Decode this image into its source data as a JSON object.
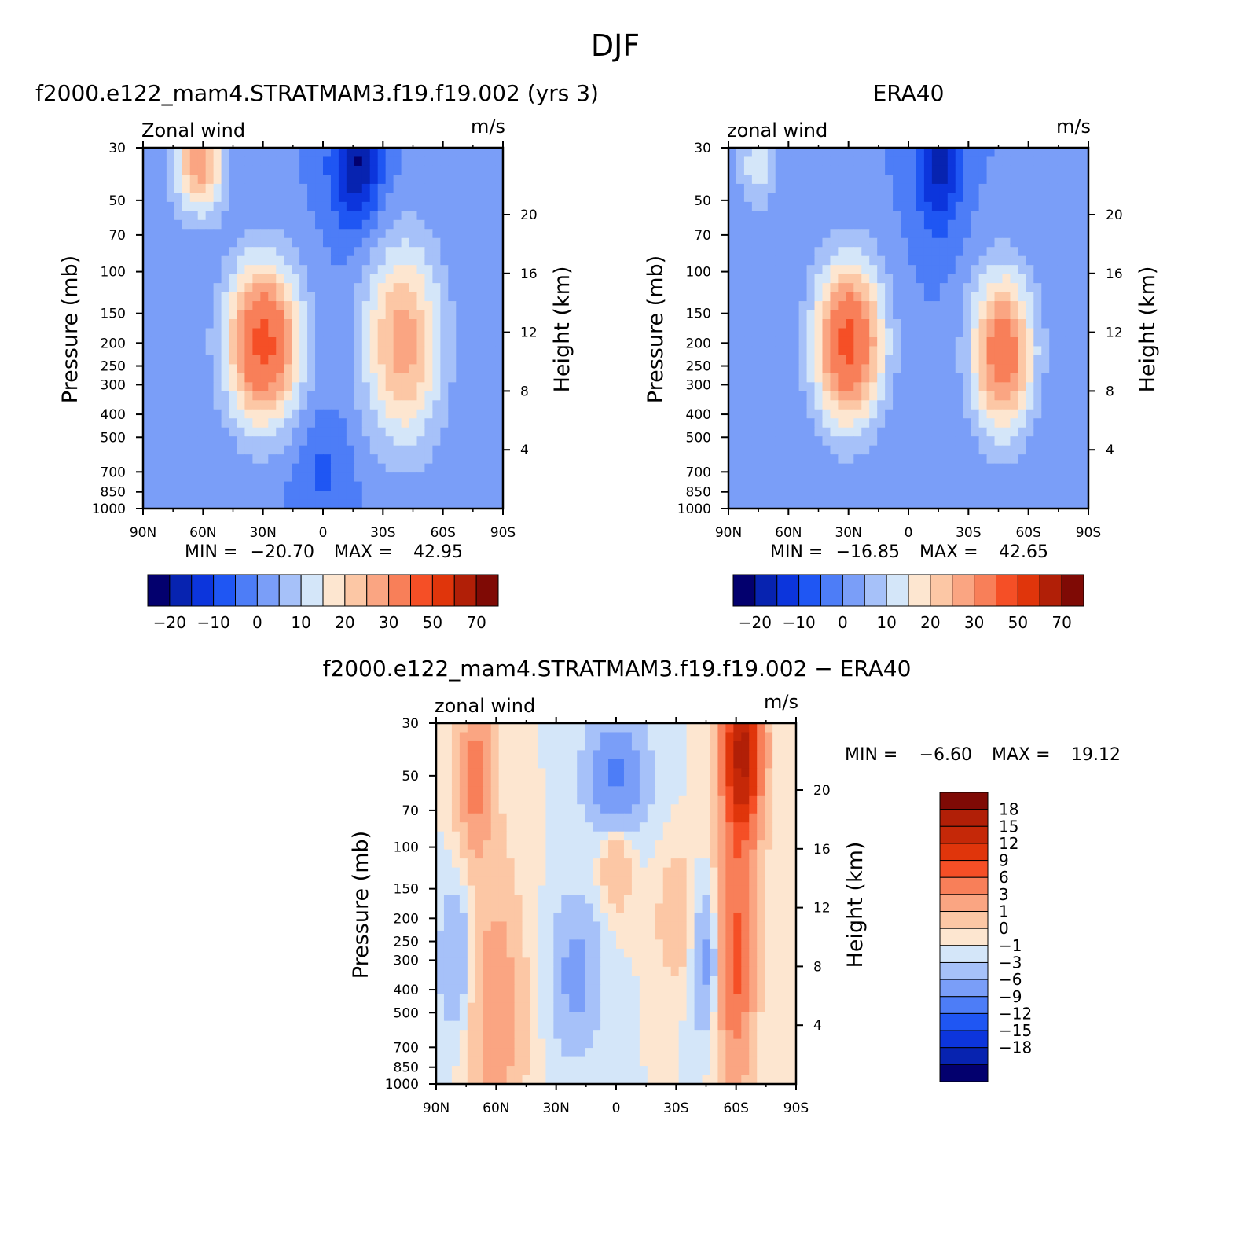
{
  "figure": {
    "title": "DJF"
  },
  "chart_data": [
    {
      "type": "heatmap",
      "id": "model",
      "title": "f2000.e122_mam4.STRATMAM3.f19.f19.002 (yrs 3)",
      "left_string": "Zonal wind",
      "right_string": "m/s",
      "ylabel": "Pressure (mb)",
      "ylabel_right": "Height (km)",
      "x_ticks": [
        "90N",
        "60N",
        "30N",
        "0",
        "30S",
        "60S",
        "90S"
      ],
      "y_ticks": [
        "30",
        "50",
        "70",
        "100",
        "150",
        "200",
        "250",
        "300",
        "400",
        "500",
        "700",
        "850",
        "1000"
      ],
      "height_ticks": [
        "4",
        "8",
        "12",
        "16",
        "20"
      ],
      "xlim": [
        90,
        -90
      ],
      "ylim": [
        1000,
        30
      ],
      "min_label": "MIN =",
      "min_value": "−20.70",
      "max_label": "MAX =",
      "max_value": "42.95",
      "levels": [
        -25,
        -20,
        -15,
        -10,
        -5,
        0,
        5,
        10,
        15,
        20,
        25,
        30,
        40,
        50,
        60,
        70
      ],
      "colorbar_labels": [
        "−20",
        "−10",
        "0",
        "10",
        "20",
        "30",
        "50",
        "70"
      ],
      "features": [
        {
          "lat": 30,
          "p": 200,
          "value": 42.95,
          "spread_lat": 13,
          "spread_logp": 0.55
        },
        {
          "lat": 62,
          "p": 35,
          "value": 28,
          "spread_lat": 9,
          "spread_logp": 0.35
        },
        {
          "lat": -40,
          "p": 200,
          "value": 28,
          "spread_lat": 14,
          "spread_logp": 0.7
        },
        {
          "lat": -17,
          "p": 35,
          "value": -20.7,
          "spread_lat": 9,
          "spread_logp": 0.45
        },
        {
          "lat": 0,
          "p": 700,
          "value": -6,
          "spread_lat": 10,
          "spread_logp": 0.4
        }
      ]
    },
    {
      "type": "heatmap",
      "id": "era40",
      "title": "ERA40",
      "left_string": "zonal wind",
      "right_string": "m/s",
      "ylabel": "Pressure (mb)",
      "ylabel_right": "Height (km)",
      "x_ticks": [
        "90N",
        "60N",
        "30N",
        "0",
        "30S",
        "60S",
        "90S"
      ],
      "y_ticks": [
        "30",
        "50",
        "70",
        "100",
        "150",
        "200",
        "250",
        "300",
        "400",
        "500",
        "700",
        "850",
        "1000"
      ],
      "height_ticks": [
        "4",
        "8",
        "12",
        "16",
        "20"
      ],
      "xlim": [
        90,
        -90
      ],
      "ylim": [
        1000,
        30
      ],
      "min_label": "MIN =",
      "min_value": "−16.85",
      "max_label": "MAX =",
      "max_value": "42.65",
      "levels": [
        -25,
        -20,
        -15,
        -10,
        -5,
        0,
        5,
        10,
        15,
        20,
        25,
        30,
        40,
        50,
        60,
        70
      ],
      "colorbar_labels": [
        "−20",
        "−10",
        "0",
        "10",
        "20",
        "30",
        "50",
        "70"
      ],
      "features": [
        {
          "lat": 30,
          "p": 200,
          "value": 42.65,
          "spread_lat": 12,
          "spread_logp": 0.55
        },
        {
          "lat": -47,
          "p": 220,
          "value": 36,
          "spread_lat": 11,
          "spread_logp": 0.55
        },
        {
          "lat": -15,
          "p": 35,
          "value": -16.85,
          "spread_lat": 8,
          "spread_logp": 0.45
        },
        {
          "lat": 75,
          "p": 35,
          "value": 14,
          "spread_lat": 7,
          "spread_logp": 0.3
        }
      ]
    },
    {
      "type": "heatmap",
      "id": "difference",
      "title": "f2000.e122_mam4.STRATMAM3.f19.f19.002 − ERA40",
      "left_string": "zonal wind",
      "right_string": "m/s",
      "ylabel": "Pressure (mb)",
      "ylabel_right": "Height (km)",
      "x_ticks": [
        "90N",
        "60N",
        "30N",
        "0",
        "30S",
        "60S",
        "90S"
      ],
      "y_ticks": [
        "30",
        "50",
        "70",
        "100",
        "150",
        "200",
        "250",
        "300",
        "400",
        "500",
        "700",
        "850",
        "1000"
      ],
      "height_ticks": [
        "4",
        "8",
        "12",
        "16",
        "20"
      ],
      "xlim": [
        90,
        -90
      ],
      "ylim": [
        1000,
        30
      ],
      "min_label": "MIN =",
      "min_value": "−6.60",
      "max_label": "MAX =",
      "max_value": "19.12",
      "levels": [
        -21,
        -18,
        -15,
        -12,
        -9,
        -6,
        -3,
        -1,
        0,
        1,
        3,
        6,
        9,
        12,
        15,
        18,
        21
      ],
      "colorbar_labels": [
        "18",
        "15",
        "12",
        "9",
        "6",
        "3",
        "1",
        "0",
        "−1",
        "−3",
        "−6",
        "−9",
        "−12",
        "−15",
        "−18"
      ],
      "features": [
        {
          "lat": -63,
          "p": 40,
          "value": 19.12,
          "spread_lat": 7,
          "spread_logp": 0.6
        },
        {
          "lat": -60,
          "p": 300,
          "value": 10,
          "spread_lat": 6,
          "spread_logp": 0.8
        },
        {
          "lat": 70,
          "p": 50,
          "value": 8,
          "spread_lat": 6,
          "spread_logp": 0.5
        },
        {
          "lat": 60,
          "p": 500,
          "value": 5,
          "spread_lat": 9,
          "spread_logp": 0.9
        },
        {
          "lat": 0,
          "p": 50,
          "value": -6.6,
          "spread_lat": 10,
          "spread_logp": 0.35
        },
        {
          "lat": 20,
          "p": 350,
          "value": -4,
          "spread_lat": 8,
          "spread_logp": 0.5
        },
        {
          "lat": -45,
          "p": 300,
          "value": -4,
          "spread_lat": 5,
          "spread_logp": 0.45
        },
        {
          "lat": 80,
          "p": 300,
          "value": -3,
          "spread_lat": 6,
          "spread_logp": 0.5
        },
        {
          "lat": -30,
          "p": 200,
          "value": 3,
          "spread_lat": 6,
          "spread_logp": 0.4
        },
        {
          "lat": 0,
          "p": 120,
          "value": 3,
          "spread_lat": 5,
          "spread_logp": 0.3
        }
      ]
    }
  ],
  "colors": {
    "levels16": [
      "#03006e",
      "#0723b0",
      "#0c35dc",
      "#1f56f3",
      "#4d7df7",
      "#7a9ef8",
      "#a6c1f9",
      "#d4e6f9",
      "#fde6d0",
      "#fcc7a5",
      "#faa582",
      "#f87f59",
      "#f54f26",
      "#e0350b",
      "#b11f07",
      "#7f0a05"
    ],
    "levels17": [
      "#03006e",
      "#0723b0",
      "#0c35dc",
      "#1f56f3",
      "#4d7df7",
      "#7a9ef8",
      "#a6c1f9",
      "#d4e6f9",
      "#fde6d0",
      "#fcc7a5",
      "#faa582",
      "#f87f59",
      "#f54f26",
      "#e0350b",
      "#c52808",
      "#b11f07",
      "#7f0a05"
    ]
  }
}
